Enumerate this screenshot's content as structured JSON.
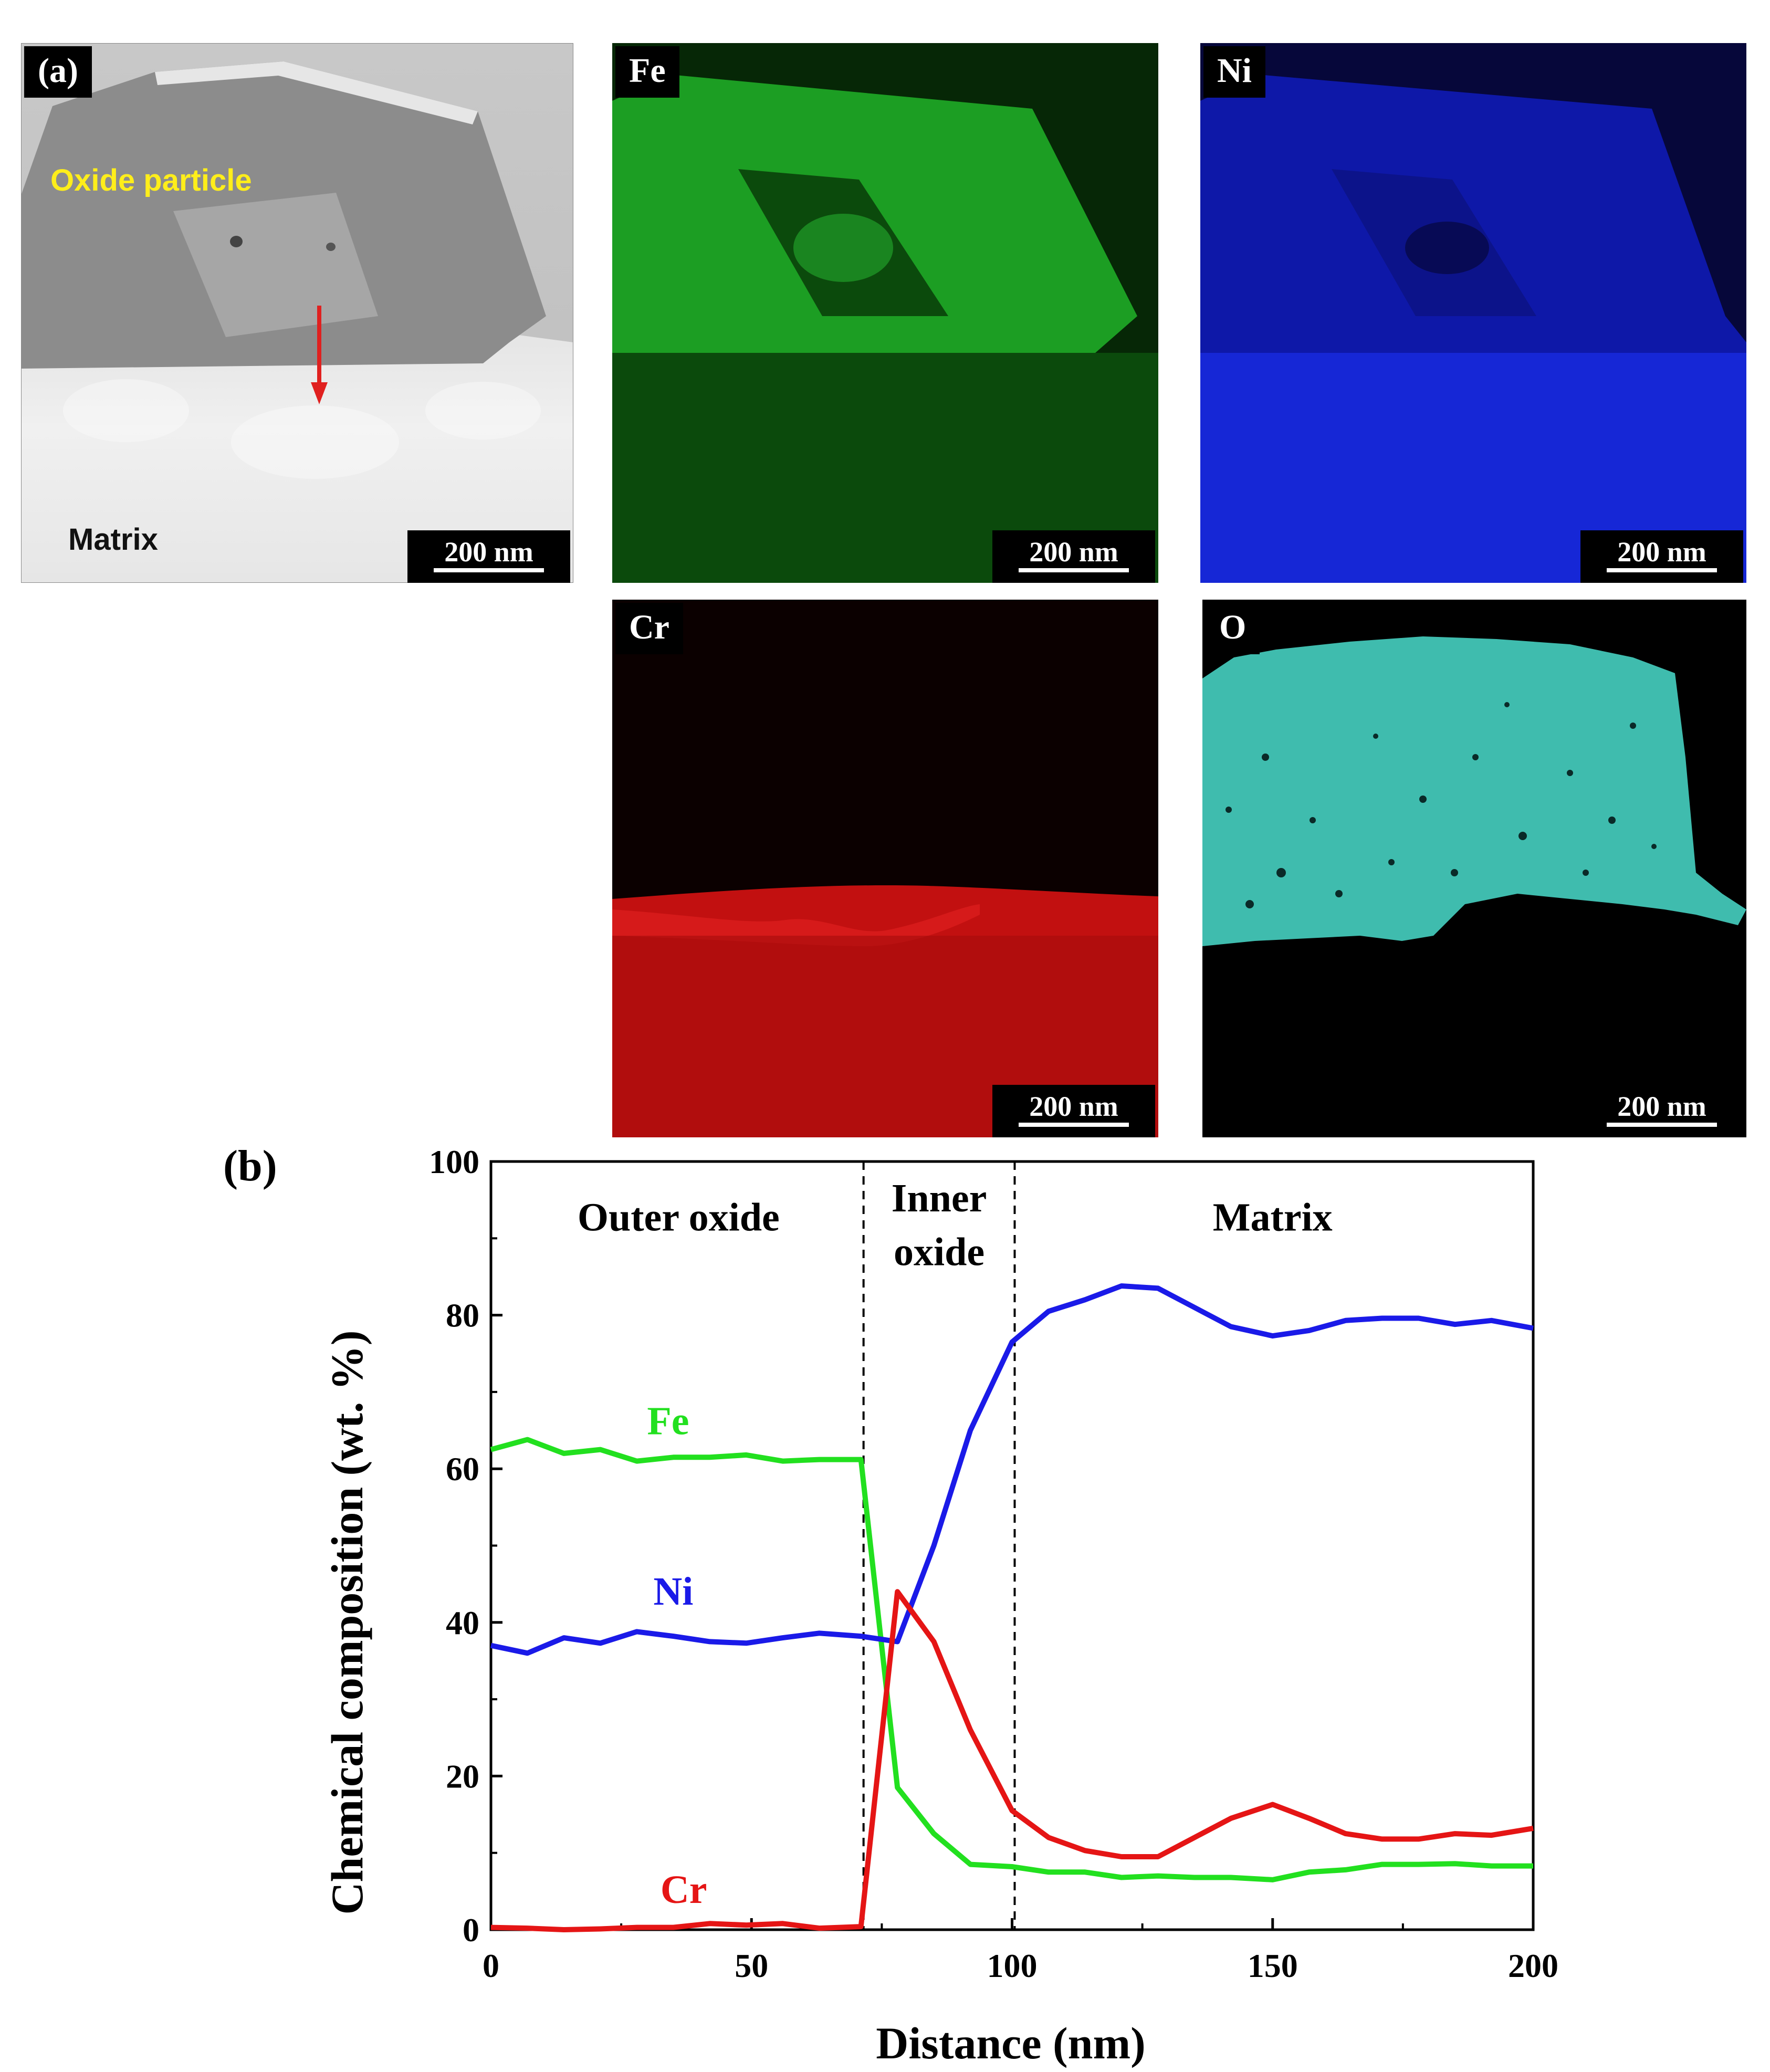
{
  "panel_a": {
    "label": "(a)",
    "oxide_label": "Oxide particle",
    "matrix_label": "Matrix",
    "scale": "200 nm",
    "arrow_color": "#e0201f",
    "oxide_label_color": "#ffee1a"
  },
  "maps": {
    "fe": {
      "label": "Fe",
      "scale": "200 nm",
      "color": "#2fdc35"
    },
    "ni": {
      "label": "Ni",
      "scale": "200 nm",
      "color": "#1d2cf0"
    },
    "cr": {
      "label": "Cr",
      "scale": "200 nm",
      "color": "#e01414"
    },
    "o": {
      "label": "O",
      "scale": "200 nm",
      "color": "#3fd6c4"
    }
  },
  "panel_b": {
    "label": "(b)"
  },
  "chart_data": {
    "type": "line",
    "xlabel": "Distance (nm)",
    "ylabel": "Chemical composition (wt. %)",
    "xlim": [
      0,
      200
    ],
    "ylim": [
      0,
      100
    ],
    "xticks": [
      0,
      50,
      100,
      150,
      200
    ],
    "xtick_labels": [
      "0",
      "50",
      "100",
      "150",
      "200"
    ],
    "yticks": [
      0,
      20,
      40,
      60,
      80,
      100
    ],
    "ytick_labels": [
      "0",
      "20",
      "40",
      "60",
      "80",
      "100"
    ],
    "region_boundaries": [
      71.5,
      100.5
    ],
    "region_labels": [
      "Outer oxide",
      "Inner",
      "oxide",
      "Matrix"
    ],
    "series": [
      {
        "name": "Fe",
        "color": "#22e01f",
        "x": [
          0,
          7,
          14,
          21,
          28,
          35,
          42,
          49,
          56,
          63,
          71,
          78,
          85,
          92,
          100,
          107,
          114,
          121,
          128,
          135,
          142,
          150,
          157,
          164,
          171,
          178,
          185,
          192,
          200
        ],
        "y": [
          62.5,
          63.8,
          62.0,
          62.5,
          61.0,
          61.5,
          61.5,
          61.8,
          61.0,
          61.2,
          61.2,
          18.5,
          12.5,
          8.5,
          8.2,
          7.5,
          7.5,
          6.8,
          7.0,
          6.8,
          6.8,
          6.5,
          7.5,
          7.8,
          8.5,
          8.5,
          8.6,
          8.3,
          8.3
        ]
      },
      {
        "name": "Ni",
        "color": "#1a1ae8",
        "x": [
          0,
          7,
          14,
          21,
          28,
          35,
          42,
          49,
          56,
          63,
          71,
          78,
          85,
          92,
          100,
          107,
          114,
          121,
          128,
          135,
          142,
          150,
          157,
          164,
          171,
          178,
          185,
          192,
          200
        ],
        "y": [
          37.0,
          36.0,
          38.0,
          37.3,
          38.8,
          38.2,
          37.5,
          37.3,
          38.0,
          38.6,
          38.2,
          37.5,
          50.0,
          65.0,
          76.5,
          80.5,
          82.0,
          83.8,
          83.5,
          81.0,
          78.5,
          77.3,
          78.0,
          79.3,
          79.6,
          79.6,
          78.8,
          79.3,
          78.3
        ]
      },
      {
        "name": "Cr",
        "color": "#e51515",
        "x": [
          0,
          7,
          14,
          21,
          28,
          35,
          42,
          49,
          56,
          63,
          71,
          78,
          85,
          92,
          100,
          107,
          114,
          121,
          128,
          135,
          142,
          150,
          157,
          164,
          171,
          178,
          185,
          192,
          200
        ],
        "y": [
          0.3,
          0.2,
          0.0,
          0.1,
          0.3,
          0.3,
          0.8,
          0.6,
          0.8,
          0.2,
          0.4,
          44.0,
          37.5,
          26.0,
          15.5,
          12.0,
          10.3,
          9.5,
          9.5,
          12.0,
          14.5,
          16.3,
          14.5,
          12.5,
          11.8,
          11.8,
          12.5,
          12.3,
          13.2
        ]
      }
    ],
    "series_labels": [
      {
        "text": "Fe",
        "x": 34,
        "y": 64.5
      },
      {
        "text": "Ni",
        "x": 35,
        "y": 42.3
      },
      {
        "text": "Cr",
        "x": 37,
        "y": 3.5
      }
    ]
  }
}
